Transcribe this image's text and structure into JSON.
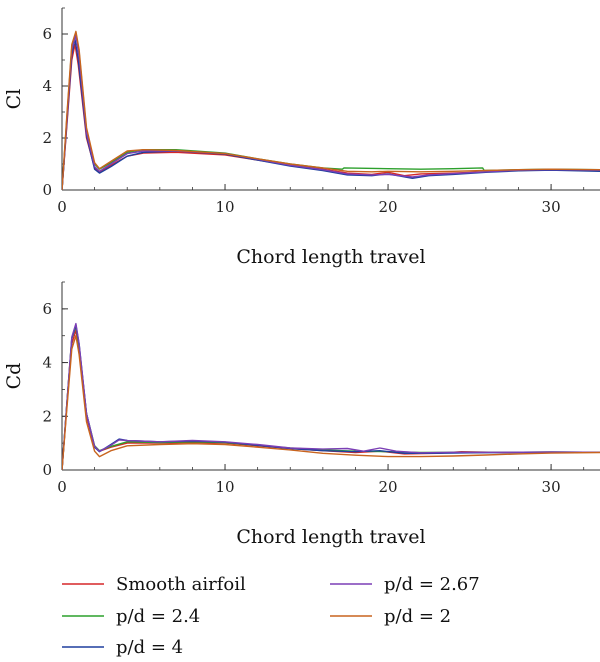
{
  "chart_data": [
    {
      "type": "line",
      "title": "",
      "xlabel": "Chord length travel",
      "ylabel": "Cl",
      "xlim": [
        0,
        33
      ],
      "ylim": [
        0,
        7
      ],
      "xticks": [
        0,
        10,
        20,
        30
      ],
      "yticks": [
        0,
        2,
        4,
        6
      ],
      "grid": false,
      "series": [
        {
          "name": "Smooth airfoil",
          "color": "#d62728",
          "points": [
            [
              0,
              0
            ],
            [
              0.3,
              2.5
            ],
            [
              0.6,
              5.0
            ],
            [
              0.8,
              5.6
            ],
            [
              1.0,
              4.8
            ],
            [
              1.5,
              2.0
            ],
            [
              2.0,
              0.85
            ],
            [
              2.3,
              0.7
            ],
            [
              3,
              0.95
            ],
            [
              4,
              1.3
            ],
            [
              5,
              1.42
            ],
            [
              7,
              1.45
            ],
            [
              10,
              1.35
            ],
            [
              12,
              1.15
            ],
            [
              14,
              0.95
            ],
            [
              16,
              0.8
            ],
            [
              17.5,
              0.65
            ],
            [
              19,
              0.6
            ],
            [
              20,
              0.68
            ],
            [
              21,
              0.55
            ],
            [
              22,
              0.62
            ],
            [
              24,
              0.65
            ],
            [
              26,
              0.7
            ],
            [
              28,
              0.75
            ],
            [
              30,
              0.78
            ],
            [
              33,
              0.75
            ]
          ]
        },
        {
          "name": "p/d = 2.4",
          "color": "#2ca02c",
          "points": [
            [
              0,
              0
            ],
            [
              0.3,
              2.8
            ],
            [
              0.6,
              5.5
            ],
            [
              0.85,
              6.05
            ],
            [
              1.05,
              5.3
            ],
            [
              1.5,
              2.3
            ],
            [
              2.0,
              1.0
            ],
            [
              2.3,
              0.8
            ],
            [
              3,
              1.05
            ],
            [
              4,
              1.45
            ],
            [
              5,
              1.55
            ],
            [
              7,
              1.55
            ],
            [
              10,
              1.42
            ],
            [
              12,
              1.2
            ],
            [
              14,
              1.0
            ],
            [
              16,
              0.85
            ],
            [
              17.2,
              0.8
            ],
            [
              17.3,
              0.85
            ],
            [
              20,
              0.82
            ],
            [
              22,
              0.8
            ],
            [
              24,
              0.82
            ],
            [
              25.8,
              0.85
            ],
            [
              25.9,
              0.75
            ],
            [
              28,
              0.78
            ],
            [
              30,
              0.8
            ],
            [
              33,
              0.78
            ]
          ]
        },
        {
          "name": "p/d = 4",
          "color": "#1f3f9e",
          "points": [
            [
              0,
              0
            ],
            [
              0.3,
              2.6
            ],
            [
              0.6,
              5.2
            ],
            [
              0.8,
              5.8
            ],
            [
              1.0,
              5.0
            ],
            [
              1.5,
              2.1
            ],
            [
              2.0,
              0.8
            ],
            [
              2.3,
              0.65
            ],
            [
              3,
              0.9
            ],
            [
              4,
              1.3
            ],
            [
              5,
              1.45
            ],
            [
              7,
              1.5
            ],
            [
              10,
              1.38
            ],
            [
              12,
              1.15
            ],
            [
              14,
              0.92
            ],
            [
              16,
              0.75
            ],
            [
              17.5,
              0.58
            ],
            [
              19,
              0.55
            ],
            [
              20,
              0.62
            ],
            [
              21.5,
              0.45
            ],
            [
              22.5,
              0.55
            ],
            [
              24,
              0.6
            ],
            [
              26,
              0.68
            ],
            [
              28,
              0.74
            ],
            [
              30,
              0.76
            ],
            [
              33,
              0.72
            ]
          ]
        },
        {
          "name": "p/d = 2.67",
          "color": "#7b3fb5",
          "points": [
            [
              0,
              0
            ],
            [
              0.3,
              2.7
            ],
            [
              0.6,
              5.4
            ],
            [
              0.85,
              5.95
            ],
            [
              1.05,
              5.1
            ],
            [
              1.5,
              2.2
            ],
            [
              2.0,
              0.9
            ],
            [
              2.3,
              0.72
            ],
            [
              3,
              1.0
            ],
            [
              4,
              1.4
            ],
            [
              5,
              1.5
            ],
            [
              7,
              1.5
            ],
            [
              10,
              1.4
            ],
            [
              12,
              1.18
            ],
            [
              14,
              0.95
            ],
            [
              16,
              0.78
            ],
            [
              17.5,
              0.62
            ],
            [
              19,
              0.58
            ],
            [
              20,
              0.6
            ],
            [
              21.5,
              0.5
            ],
            [
              22.5,
              0.58
            ],
            [
              24,
              0.63
            ],
            [
              26,
              0.7
            ],
            [
              28,
              0.76
            ],
            [
              30,
              0.79
            ],
            [
              33,
              0.76
            ]
          ]
        },
        {
          "name": "p/d = 2",
          "color": "#c8641e",
          "points": [
            [
              0,
              0
            ],
            [
              0.3,
              2.9
            ],
            [
              0.6,
              5.6
            ],
            [
              0.85,
              6.1
            ],
            [
              1.05,
              5.4
            ],
            [
              1.5,
              2.4
            ],
            [
              2.0,
              1.05
            ],
            [
              2.3,
              0.82
            ],
            [
              3,
              1.1
            ],
            [
              4,
              1.5
            ],
            [
              5,
              1.55
            ],
            [
              7,
              1.52
            ],
            [
              10,
              1.4
            ],
            [
              12,
              1.2
            ],
            [
              14,
              1.0
            ],
            [
              16,
              0.85
            ],
            [
              17.5,
              0.72
            ],
            [
              19,
              0.7
            ],
            [
              20,
              0.72
            ],
            [
              22,
              0.7
            ],
            [
              24,
              0.72
            ],
            [
              26,
              0.75
            ],
            [
              28,
              0.78
            ],
            [
              30,
              0.8
            ],
            [
              33,
              0.78
            ]
          ]
        }
      ]
    },
    {
      "type": "line",
      "title": "",
      "xlabel": "Chord length travel",
      "ylabel": "Cd",
      "xlim": [
        0,
        33
      ],
      "ylim": [
        0,
        7
      ],
      "xticks": [
        0,
        10,
        20,
        30
      ],
      "yticks": [
        0,
        2,
        4,
        6
      ],
      "grid": false,
      "series": [
        {
          "name": "Smooth airfoil",
          "color": "#d62728",
          "points": [
            [
              0,
              0
            ],
            [
              0.3,
              2.4
            ],
            [
              0.6,
              4.7
            ],
            [
              0.85,
              5.2
            ],
            [
              1.05,
              4.5
            ],
            [
              1.5,
              2.0
            ],
            [
              2.0,
              0.85
            ],
            [
              2.3,
              0.7
            ],
            [
              3,
              0.85
            ],
            [
              4,
              1.0
            ],
            [
              6,
              1.0
            ],
            [
              8,
              1.02
            ],
            [
              10,
              1.0
            ],
            [
              12,
              0.9
            ],
            [
              14,
              0.8
            ],
            [
              16,
              0.72
            ],
            [
              18,
              0.65
            ],
            [
              19.5,
              0.7
            ],
            [
              21,
              0.6
            ],
            [
              23,
              0.62
            ],
            [
              24.5,
              0.68
            ],
            [
              27,
              0.65
            ],
            [
              30,
              0.66
            ],
            [
              33,
              0.66
            ]
          ]
        },
        {
          "name": "p/d = 2.4",
          "color": "#2ca02c",
          "points": [
            [
              0,
              0
            ],
            [
              0.3,
              2.5
            ],
            [
              0.6,
              4.9
            ],
            [
              0.85,
              5.35
            ],
            [
              1.05,
              4.6
            ],
            [
              1.5,
              2.1
            ],
            [
              2.0,
              0.9
            ],
            [
              2.3,
              0.72
            ],
            [
              3,
              0.88
            ],
            [
              4,
              1.05
            ],
            [
              6,
              1.02
            ],
            [
              8,
              1.05
            ],
            [
              10,
              1.02
            ],
            [
              12,
              0.92
            ],
            [
              14,
              0.82
            ],
            [
              16,
              0.75
            ],
            [
              18,
              0.7
            ],
            [
              20,
              0.68
            ],
            [
              22,
              0.65
            ],
            [
              24,
              0.66
            ],
            [
              27,
              0.66
            ],
            [
              30,
              0.67
            ],
            [
              33,
              0.66
            ]
          ]
        },
        {
          "name": "p/d = 4",
          "color": "#1f3f9e",
          "points": [
            [
              0,
              0
            ],
            [
              0.3,
              2.5
            ],
            [
              0.6,
              4.9
            ],
            [
              0.85,
              5.4
            ],
            [
              1.05,
              4.7
            ],
            [
              1.5,
              2.1
            ],
            [
              2.0,
              0.85
            ],
            [
              2.3,
              0.68
            ],
            [
              3,
              0.95
            ],
            [
              3.5,
              1.15
            ],
            [
              4,
              1.1
            ],
            [
              6,
              1.05
            ],
            [
              8,
              1.08
            ],
            [
              10,
              1.04
            ],
            [
              12,
              0.92
            ],
            [
              14,
              0.8
            ],
            [
              16,
              0.72
            ],
            [
              18,
              0.68
            ],
            [
              19.5,
              0.72
            ],
            [
              21,
              0.62
            ],
            [
              23,
              0.62
            ],
            [
              25,
              0.64
            ],
            [
              28,
              0.65
            ],
            [
              30,
              0.66
            ],
            [
              33,
              0.66
            ]
          ]
        },
        {
          "name": "p/d = 2.67",
          "color": "#7b3fb5",
          "points": [
            [
              0,
              0
            ],
            [
              0.3,
              2.5
            ],
            [
              0.6,
              4.95
            ],
            [
              0.85,
              5.45
            ],
            [
              1.05,
              4.7
            ],
            [
              1.5,
              2.1
            ],
            [
              2.0,
              0.88
            ],
            [
              2.3,
              0.7
            ],
            [
              3,
              0.92
            ],
            [
              3.5,
              1.12
            ],
            [
              4,
              1.1
            ],
            [
              6,
              1.05
            ],
            [
              8,
              1.1
            ],
            [
              10,
              1.05
            ],
            [
              12,
              0.95
            ],
            [
              14,
              0.82
            ],
            [
              16,
              0.78
            ],
            [
              17.5,
              0.8
            ],
            [
              18.5,
              0.7
            ],
            [
              19.5,
              0.82
            ],
            [
              20.5,
              0.7
            ],
            [
              22,
              0.64
            ],
            [
              24,
              0.66
            ],
            [
              27,
              0.66
            ],
            [
              30,
              0.67
            ],
            [
              33,
              0.66
            ]
          ]
        },
        {
          "name": "p/d = 2",
          "color": "#c8641e",
          "points": [
            [
              0,
              0
            ],
            [
              0.3,
              2.3
            ],
            [
              0.6,
              4.5
            ],
            [
              0.85,
              5.0
            ],
            [
              1.05,
              4.3
            ],
            [
              1.5,
              1.8
            ],
            [
              2.0,
              0.7
            ],
            [
              2.3,
              0.5
            ],
            [
              3,
              0.72
            ],
            [
              4,
              0.9
            ],
            [
              6,
              0.95
            ],
            [
              8,
              0.98
            ],
            [
              10,
              0.95
            ],
            [
              12,
              0.85
            ],
            [
              14,
              0.75
            ],
            [
              16,
              0.62
            ],
            [
              18,
              0.55
            ],
            [
              20,
              0.5
            ],
            [
              22,
              0.5
            ],
            [
              24,
              0.52
            ],
            [
              26,
              0.56
            ],
            [
              28,
              0.6
            ],
            [
              30,
              0.63
            ],
            [
              33,
              0.65
            ]
          ]
        }
      ]
    }
  ],
  "legend": {
    "placement": "bottom",
    "items": [
      {
        "label": "Smooth airfoil",
        "color": "#d62728"
      },
      {
        "label": "p/d = 2.67",
        "color": "#7b3fb5"
      },
      {
        "label": "p/d = 2.4",
        "color": "#2ca02c"
      },
      {
        "label": "p/d = 2",
        "color": "#c8641e"
      },
      {
        "label": "p/d = 4",
        "color": "#1f3f9e"
      }
    ]
  }
}
